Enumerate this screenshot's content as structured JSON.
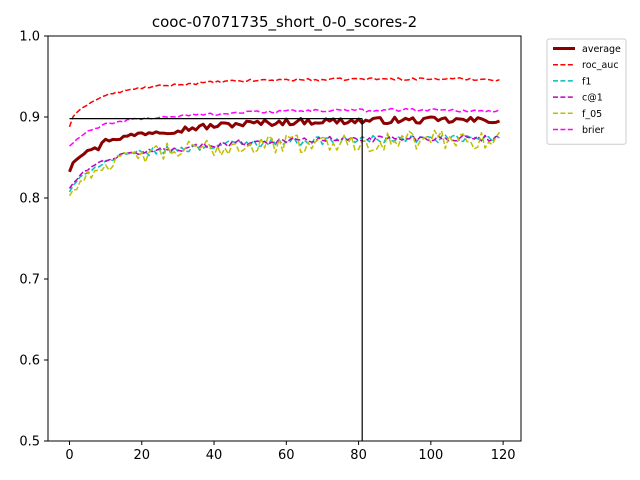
{
  "chart_data": {
    "type": "line",
    "title": "cooc-07071735_short_0-0_scores-2",
    "xlabel": "",
    "ylabel": "",
    "xlim": [
      -5.95,
      124.95
    ],
    "ylim": [
      0.5,
      1.0
    ],
    "x_ticks": [
      0,
      20,
      40,
      60,
      80,
      100,
      120
    ],
    "y_ticks": [
      0.5,
      0.6,
      0.7,
      0.8,
      0.9,
      1.0
    ],
    "x_tick_labels": [
      "0",
      "20",
      "40",
      "60",
      "80",
      "100",
      "120"
    ],
    "y_tick_labels": [
      "0.5",
      "0.6",
      "0.7",
      "0.8",
      "0.9",
      "1.0"
    ],
    "legend_position": "outside-top-right",
    "reference_lines": [
      {
        "name": "best-horizontal",
        "orientation": "horizontal",
        "y": 0.898,
        "x_from": 0,
        "x_to": 81,
        "color": "#000000"
      },
      {
        "name": "best-vertical",
        "orientation": "vertical",
        "x": 81,
        "y_from": 0.5,
        "y_to": 0.898,
        "color": "#000000"
      }
    ],
    "series": [
      {
        "name": "average",
        "color": "#8b0000",
        "dash": "solid",
        "width": 3,
        "anchors": [
          [
            0,
            0.833
          ],
          [
            1,
            0.845
          ],
          [
            3,
            0.852
          ],
          [
            5,
            0.86
          ],
          [
            7,
            0.862
          ],
          [
            8,
            0.858
          ],
          [
            9,
            0.87
          ],
          [
            12,
            0.873
          ],
          [
            15,
            0.875
          ],
          [
            20,
            0.88
          ],
          [
            25,
            0.883
          ],
          [
            30,
            0.884
          ],
          [
            35,
            0.887
          ],
          [
            40,
            0.889
          ],
          [
            45,
            0.891
          ],
          [
            50,
            0.892
          ],
          [
            55,
            0.893
          ],
          [
            60,
            0.894
          ],
          [
            70,
            0.895
          ],
          [
            80,
            0.895
          ],
          [
            90,
            0.896
          ],
          [
            100,
            0.896
          ],
          [
            110,
            0.896
          ],
          [
            119,
            0.896
          ]
        ],
        "noise": 0.004
      },
      {
        "name": "roc_auc",
        "color": "#ff0000",
        "dash": "dashed",
        "width": 1.5,
        "anchors": [
          [
            0,
            0.888
          ],
          [
            1,
            0.9
          ],
          [
            3,
            0.91
          ],
          [
            6,
            0.918
          ],
          [
            10,
            0.927
          ],
          [
            15,
            0.932
          ],
          [
            20,
            0.936
          ],
          [
            30,
            0.94
          ],
          [
            40,
            0.943
          ],
          [
            50,
            0.945
          ],
          [
            60,
            0.946
          ],
          [
            70,
            0.946
          ],
          [
            80,
            0.947
          ],
          [
            90,
            0.947
          ],
          [
            100,
            0.947
          ],
          [
            110,
            0.947
          ],
          [
            119,
            0.946
          ]
        ],
        "noise": 0.0015
      },
      {
        "name": "f1",
        "color": "#00bfbf",
        "dash": "dashed",
        "width": 1.5,
        "anchors": [
          [
            0,
            0.808
          ],
          [
            2,
            0.82
          ],
          [
            5,
            0.833
          ],
          [
            10,
            0.845
          ],
          [
            15,
            0.852
          ],
          [
            20,
            0.856
          ],
          [
            30,
            0.86
          ],
          [
            40,
            0.865
          ],
          [
            50,
            0.868
          ],
          [
            60,
            0.87
          ],
          [
            70,
            0.871
          ],
          [
            80,
            0.872
          ],
          [
            90,
            0.873
          ],
          [
            100,
            0.873
          ],
          [
            110,
            0.873
          ],
          [
            119,
            0.873
          ]
        ],
        "noise": 0.005
      },
      {
        "name": "c@1",
        "color": "#bf00bf",
        "dash": "dashed",
        "width": 1.5,
        "anchors": [
          [
            0,
            0.812
          ],
          [
            2,
            0.823
          ],
          [
            5,
            0.836
          ],
          [
            10,
            0.847
          ],
          [
            15,
            0.853
          ],
          [
            20,
            0.857
          ],
          [
            30,
            0.861
          ],
          [
            40,
            0.866
          ],
          [
            50,
            0.869
          ],
          [
            60,
            0.871
          ],
          [
            70,
            0.872
          ],
          [
            80,
            0.873
          ],
          [
            90,
            0.874
          ],
          [
            100,
            0.874
          ],
          [
            110,
            0.874
          ],
          [
            119,
            0.874
          ]
        ],
        "noise": 0.004
      },
      {
        "name": "f_05",
        "color": "#bfbf00",
        "dash": "dashed",
        "width": 1.5,
        "anchors": [
          [
            0,
            0.803
          ],
          [
            2,
            0.815
          ],
          [
            5,
            0.828
          ],
          [
            10,
            0.84
          ],
          [
            15,
            0.848
          ],
          [
            20,
            0.853
          ],
          [
            30,
            0.858
          ],
          [
            40,
            0.862
          ],
          [
            50,
            0.865
          ],
          [
            60,
            0.867
          ],
          [
            70,
            0.868
          ],
          [
            80,
            0.869
          ],
          [
            90,
            0.87
          ],
          [
            100,
            0.872
          ],
          [
            110,
            0.872
          ],
          [
            119,
            0.873
          ]
        ],
        "noise": 0.012
      },
      {
        "name": "brier",
        "color": "#ff00ff",
        "dash": "dashed",
        "width": 1.5,
        "anchors": [
          [
            0,
            0.864
          ],
          [
            2,
            0.872
          ],
          [
            5,
            0.882
          ],
          [
            10,
            0.891
          ],
          [
            15,
            0.895
          ],
          [
            20,
            0.898
          ],
          [
            30,
            0.901
          ],
          [
            40,
            0.904
          ],
          [
            50,
            0.906
          ],
          [
            60,
            0.907
          ],
          [
            70,
            0.908
          ],
          [
            80,
            0.908
          ],
          [
            90,
            0.909
          ],
          [
            100,
            0.909
          ],
          [
            110,
            0.908
          ],
          [
            119,
            0.907
          ]
        ],
        "noise": 0.002
      }
    ]
  }
}
